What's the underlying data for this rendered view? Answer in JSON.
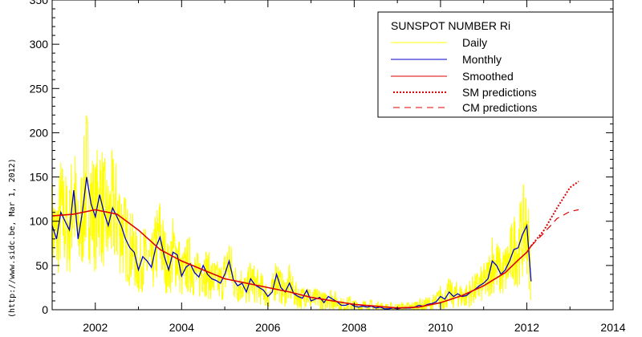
{
  "chart_data": {
    "type": "line",
    "title": "",
    "xlabel": "",
    "ylabel": "",
    "side_note": "(http://www.sidc.be, Mar  1, 2012)",
    "xlim": [
      2001.0,
      2014.0
    ],
    "ylim": [
      0,
      350
    ],
    "x_ticks": [
      "2002",
      "2004",
      "2006",
      "2008",
      "2010",
      "2012",
      "2014"
    ],
    "y_ticks": [
      "0",
      "50",
      "100",
      "150",
      "200",
      "250",
      "300",
      "350"
    ],
    "legend": {
      "title": "SUNSPOT NUMBER Ri",
      "placement": "top-right",
      "entries": [
        "Daily",
        "Monthly",
        "Smoothed",
        "SM predictions",
        "CM predictions"
      ]
    },
    "colors": {
      "daily": "#ffff00",
      "monthly": "#0000cc",
      "smoothed": "#dd0000",
      "sm_predictions": "#dd0000",
      "cm_predictions": "#dd0000"
    },
    "series": [
      {
        "name": "Monthly",
        "x": [
          2001.0,
          2001.1,
          2001.2,
          2001.3,
          2001.4,
          2001.5,
          2001.6,
          2001.7,
          2001.8,
          2001.9,
          2002.0,
          2002.1,
          2002.2,
          2002.3,
          2002.4,
          2002.5,
          2002.6,
          2002.7,
          2002.8,
          2002.9,
          2003.0,
          2003.1,
          2003.2,
          2003.3,
          2003.4,
          2003.5,
          2003.6,
          2003.7,
          2003.8,
          2003.9,
          2004.0,
          2004.1,
          2004.2,
          2004.3,
          2004.4,
          2004.5,
          2004.6,
          2004.7,
          2004.8,
          2004.9,
          2005.0,
          2005.1,
          2005.2,
          2005.3,
          2005.4,
          2005.5,
          2005.6,
          2005.7,
          2005.8,
          2005.9,
          2006.0,
          2006.1,
          2006.2,
          2006.3,
          2006.4,
          2006.5,
          2006.6,
          2006.7,
          2006.8,
          2006.9,
          2007.0,
          2007.1,
          2007.2,
          2007.3,
          2007.4,
          2007.5,
          2007.6,
          2007.7,
          2007.8,
          2007.9,
          2008.0,
          2008.1,
          2008.2,
          2008.3,
          2008.4,
          2008.5,
          2008.6,
          2008.7,
          2008.8,
          2008.9,
          2009.0,
          2009.1,
          2009.2,
          2009.3,
          2009.4,
          2009.5,
          2009.6,
          2009.7,
          2009.8,
          2009.9,
          2010.0,
          2010.1,
          2010.2,
          2010.3,
          2010.4,
          2010.5,
          2010.6,
          2010.7,
          2010.8,
          2010.9,
          2011.0,
          2011.1,
          2011.2,
          2011.3,
          2011.4,
          2011.5,
          2011.6,
          2011.7,
          2011.8,
          2011.9,
          2012.0,
          2012.1
        ],
        "values": [
          95,
          80,
          110,
          100,
          90,
          135,
          80,
          110,
          150,
          120,
          105,
          130,
          110,
          95,
          115,
          105,
          95,
          80,
          70,
          65,
          45,
          60,
          55,
          48,
          70,
          82,
          60,
          45,
          65,
          62,
          38,
          48,
          52,
          42,
          37,
          50,
          40,
          35,
          33,
          30,
          40,
          55,
          34,
          27,
          30,
          20,
          35,
          28,
          25,
          22,
          15,
          20,
          40,
          25,
          20,
          30,
          18,
          15,
          13,
          22,
          10,
          12,
          14,
          8,
          15,
          12,
          9,
          5,
          5,
          7,
          4,
          3,
          4,
          3,
          4,
          2,
          3,
          1,
          1,
          2,
          1,
          2,
          2,
          2,
          3,
          5,
          4,
          6,
          7,
          9,
          15,
          12,
          20,
          15,
          18,
          15,
          16,
          20,
          23,
          27,
          30,
          35,
          55,
          50,
          40,
          45,
          55,
          68,
          70,
          85,
          95,
          32
        ]
      },
      {
        "name": "Smoothed",
        "x": [
          2001.0,
          2001.5,
          2002.0,
          2002.5,
          2003.0,
          2003.5,
          2004.0,
          2004.5,
          2005.0,
          2005.5,
          2006.0,
          2006.5,
          2007.0,
          2007.5,
          2008.0,
          2008.5,
          2009.0,
          2009.5,
          2010.0,
          2010.5,
          2011.0,
          2011.5,
          2011.8,
          2012.0,
          2012.1
        ],
        "values": [
          106,
          108,
          113,
          108,
          90,
          68,
          55,
          45,
          35,
          30,
          25,
          20,
          14,
          10,
          6,
          4,
          2,
          3,
          8,
          16,
          27,
          42,
          56,
          65,
          72
        ]
      },
      {
        "name": "SM predictions",
        "x": [
          2012.1,
          2012.4,
          2012.7,
          2013.0,
          2013.2
        ],
        "values": [
          72,
          90,
          115,
          138,
          145
        ]
      },
      {
        "name": "CM predictions",
        "x": [
          2012.1,
          2012.4,
          2012.7,
          2013.0,
          2013.2
        ],
        "values": [
          72,
          87,
          103,
          111,
          113
        ]
      }
    ]
  }
}
